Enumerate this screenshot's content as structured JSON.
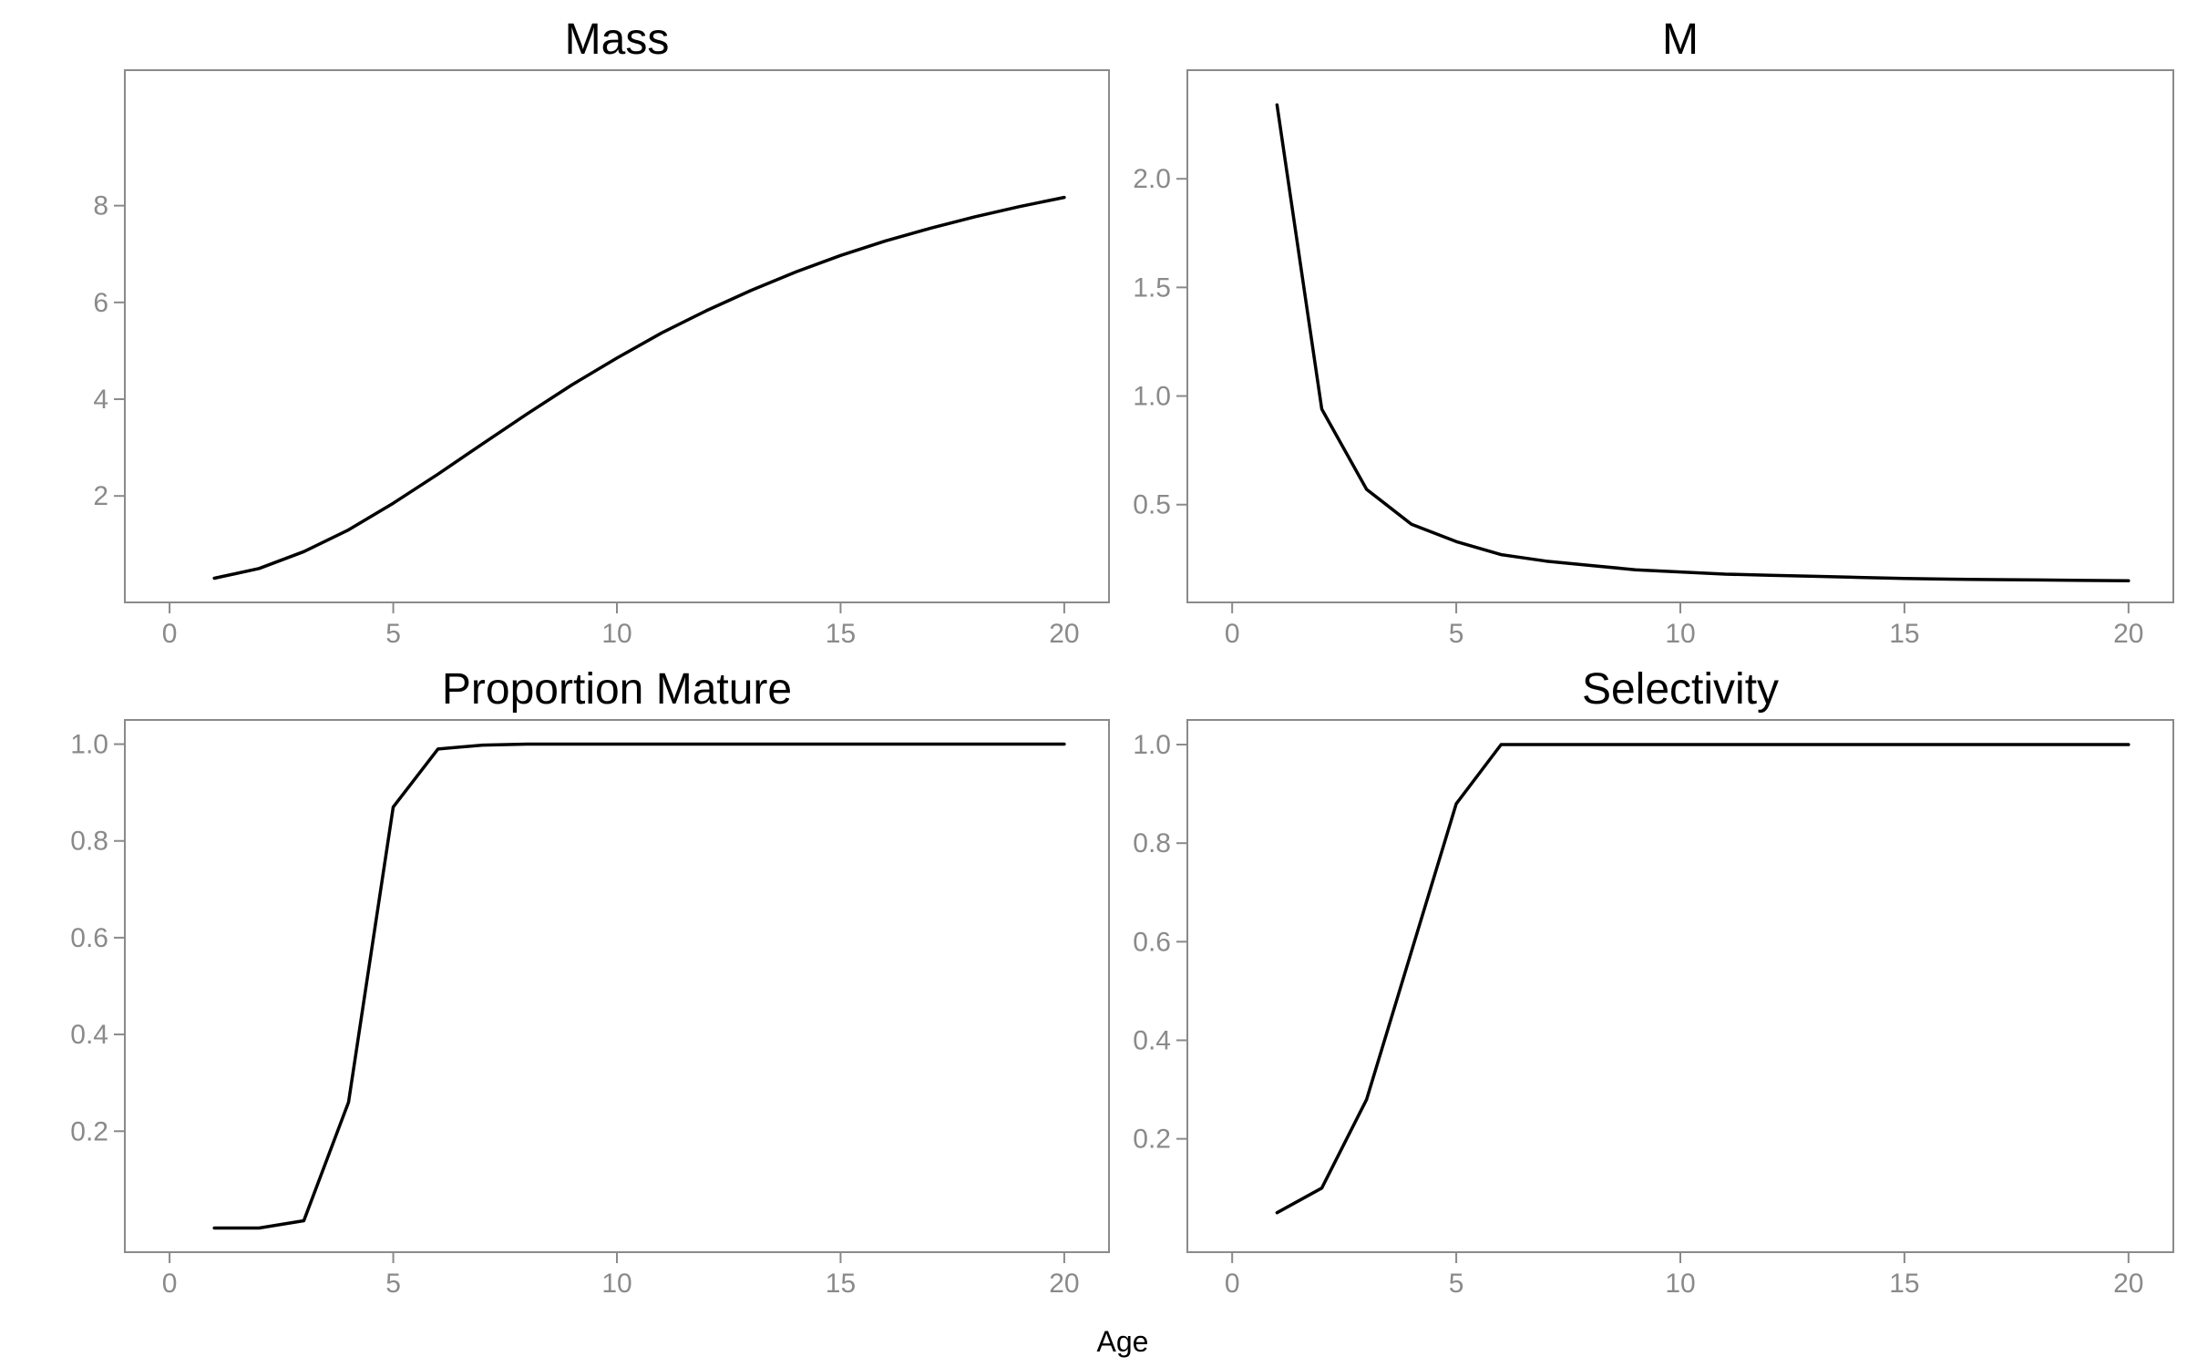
{
  "chart_data": [
    {
      "type": "line",
      "title": "Mass",
      "xlim": [
        -1,
        21
      ],
      "ylim": [
        -0.2,
        10.8
      ],
      "xticks": [
        0,
        5,
        10,
        15,
        20
      ],
      "yticks": [
        2,
        4,
        6,
        8
      ],
      "ytick_labels": [
        "2",
        "4",
        "6",
        "8"
      ],
      "series": [
        {
          "x": [
            1,
            2,
            3,
            4,
            5,
            6,
            7,
            8,
            9,
            10,
            11,
            12,
            13,
            14,
            15,
            16,
            17,
            18,
            19,
            20
          ],
          "y": [
            0.3,
            0.5,
            0.85,
            1.3,
            1.85,
            2.45,
            3.08,
            3.7,
            4.3,
            4.85,
            5.37,
            5.83,
            6.25,
            6.63,
            6.97,
            7.27,
            7.53,
            7.77,
            7.98,
            8.17
          ]
        }
      ]
    },
    {
      "type": "line",
      "title": "M",
      "xlim": [
        -1,
        21
      ],
      "ylim": [
        0.05,
        2.5
      ],
      "xticks": [
        0,
        5,
        10,
        15,
        20
      ],
      "yticks": [
        0.5,
        1.0,
        1.5,
        2.0
      ],
      "ytick_labels": [
        "0.5",
        "1.0",
        "1.5",
        "2.0"
      ],
      "series": [
        {
          "x": [
            1,
            2,
            3,
            4,
            5,
            6,
            7,
            8,
            9,
            10,
            11,
            12,
            13,
            14,
            15,
            16,
            17,
            18,
            19,
            20
          ],
          "y": [
            2.34,
            0.94,
            0.57,
            0.41,
            0.33,
            0.27,
            0.24,
            0.22,
            0.2,
            0.19,
            0.18,
            0.175,
            0.17,
            0.165,
            0.16,
            0.157,
            0.155,
            0.153,
            0.151,
            0.15
          ]
        }
      ]
    },
    {
      "type": "line",
      "title": "Proportion Mature",
      "xlim": [
        -1,
        21
      ],
      "ylim": [
        -0.05,
        1.05
      ],
      "xticks": [
        0,
        5,
        10,
        15,
        20
      ],
      "yticks": [
        0.2,
        0.4,
        0.6,
        0.8,
        1.0
      ],
      "ytick_labels": [
        "0.2",
        "0.4",
        "0.6",
        "0.8",
        "1.0"
      ],
      "series": [
        {
          "x": [
            1,
            2,
            3,
            4,
            5,
            6,
            7,
            8,
            9,
            10,
            11,
            12,
            13,
            14,
            15,
            16,
            17,
            18,
            19,
            20
          ],
          "y": [
            0.0,
            0.0,
            0.015,
            0.26,
            0.87,
            0.99,
            0.998,
            1.0,
            1.0,
            1.0,
            1.0,
            1.0,
            1.0,
            1.0,
            1.0,
            1.0,
            1.0,
            1.0,
            1.0,
            1.0
          ]
        }
      ]
    },
    {
      "type": "line",
      "title": "Selectivity",
      "xlim": [
        -1,
        21
      ],
      "ylim": [
        -0.03,
        1.05
      ],
      "xticks": [
        0,
        5,
        10,
        15,
        20
      ],
      "yticks": [
        0.2,
        0.4,
        0.6,
        0.8,
        1.0
      ],
      "ytick_labels": [
        "0.2",
        "0.4",
        "0.6",
        "0.8",
        "1.0"
      ],
      "series": [
        {
          "x": [
            1,
            2,
            3,
            4,
            5,
            6,
            7,
            8,
            9,
            10,
            11,
            12,
            13,
            14,
            15,
            16,
            17,
            18,
            19,
            20
          ],
          "y": [
            0.05,
            0.1,
            0.28,
            0.58,
            0.88,
            1.0,
            1.0,
            1.0,
            1.0,
            1.0,
            1.0,
            1.0,
            1.0,
            1.0,
            1.0,
            1.0,
            1.0,
            1.0,
            1.0,
            1.0
          ]
        }
      ]
    }
  ],
  "xlabel": "Age",
  "grid": false
}
